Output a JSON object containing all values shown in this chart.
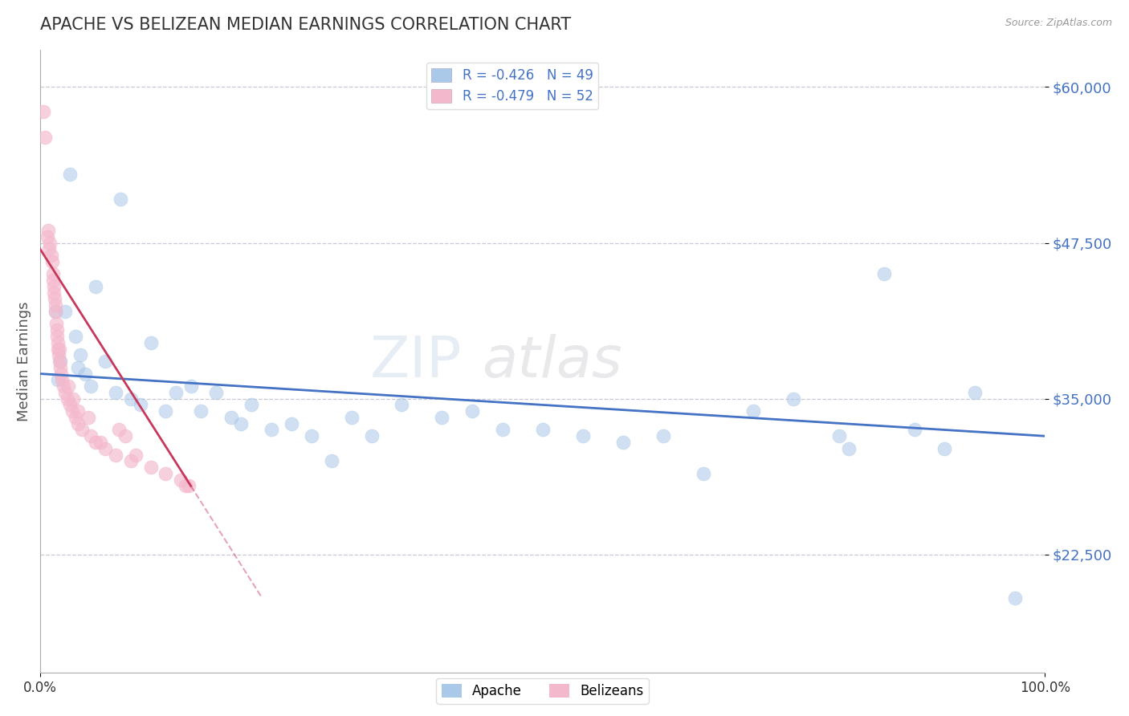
{
  "title": "APACHE VS BELIZEAN MEDIAN EARNINGS CORRELATION CHART",
  "source": "Source: ZipAtlas.com",
  "ylabel": "Median Earnings",
  "xlim": [
    0.0,
    100.0
  ],
  "ylim": [
    13000,
    63000
  ],
  "yticks": [
    22500,
    35000,
    47500,
    60000
  ],
  "ytick_labels": [
    "$22,500",
    "$35,000",
    "$47,500",
    "$60,000"
  ],
  "xtick_labels": [
    "0.0%",
    "100.0%"
  ],
  "background_color": "#ffffff",
  "grid_color": "#bbbbcc",
  "apache_color": "#aac8e8",
  "belizean_color": "#f4b8cc",
  "apache_line_color": "#4472c4",
  "belizean_line_color": "#c8385a",
  "apache_R": -0.426,
  "apache_N": 49,
  "belizean_R": -0.479,
  "belizean_N": 52,
  "watermark": "ZIPatlas",
  "apache_x": [
    3.0,
    8.0,
    5.5,
    1.5,
    2.5,
    3.5,
    4.0,
    2.0,
    3.8,
    4.5,
    1.8,
    5.0,
    6.5,
    7.5,
    9.0,
    10.0,
    11.0,
    12.5,
    13.5,
    15.0,
    16.0,
    17.5,
    19.0,
    20.0,
    21.0,
    23.0,
    25.0,
    27.0,
    29.0,
    31.0,
    33.0,
    36.0,
    40.0,
    43.0,
    46.0,
    50.0,
    54.0,
    58.0,
    62.0,
    66.0,
    71.0,
    75.0,
    79.5,
    80.5,
    84.0,
    87.0,
    90.0,
    93.0,
    97.0
  ],
  "apache_y": [
    53000,
    51000,
    44000,
    42000,
    42000,
    40000,
    38500,
    38000,
    37500,
    37000,
    36500,
    36000,
    38000,
    35500,
    35000,
    34500,
    39500,
    34000,
    35500,
    36000,
    34000,
    35500,
    33500,
    33000,
    34500,
    32500,
    33000,
    32000,
    30000,
    33500,
    32000,
    34500,
    33500,
    34000,
    32500,
    32500,
    32000,
    31500,
    32000,
    29000,
    34000,
    35000,
    32000,
    31000,
    45000,
    32500,
    31000,
    35500,
    19000
  ],
  "belizean_x": [
    0.3,
    0.5,
    0.7,
    0.8,
    0.9,
    1.0,
    1.1,
    1.2,
    1.25,
    1.3,
    1.35,
    1.4,
    1.45,
    1.5,
    1.55,
    1.6,
    1.65,
    1.7,
    1.75,
    1.8,
    1.85,
    1.9,
    2.0,
    2.1,
    2.2,
    2.3,
    2.5,
    2.7,
    3.0,
    3.2,
    3.5,
    3.8,
    4.2,
    5.0,
    5.5,
    6.5,
    7.5,
    9.0,
    11.0,
    12.5,
    14.0,
    2.8,
    3.8,
    14.5,
    7.8,
    8.5,
    3.3,
    4.8,
    14.8,
    6.0,
    9.5,
    1.9
  ],
  "belizean_y": [
    58000,
    56000,
    48000,
    48500,
    47000,
    47500,
    46500,
    46000,
    45000,
    44500,
    44000,
    43500,
    43000,
    42500,
    42000,
    41000,
    40500,
    40000,
    39500,
    39000,
    38500,
    38000,
    37500,
    37000,
    36500,
    36000,
    35500,
    35000,
    34500,
    34000,
    33500,
    33000,
    32500,
    32000,
    31500,
    31000,
    30500,
    30000,
    29500,
    29000,
    28500,
    36000,
    34000,
    28000,
    32500,
    32000,
    35000,
    33500,
    28000,
    31500,
    30500,
    39000
  ]
}
